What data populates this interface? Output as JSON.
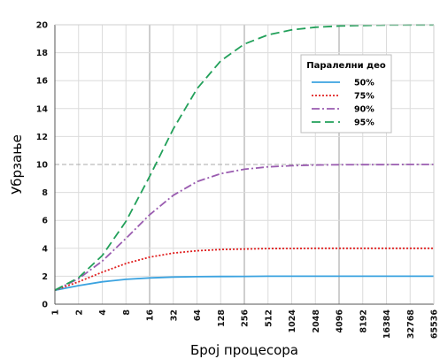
{
  "chart_data": {
    "type": "line",
    "title": "",
    "xlabel": "Број процесора",
    "ylabel": "Убрзање",
    "x_scale": "log2",
    "x": [
      1,
      2,
      4,
      8,
      16,
      32,
      64,
      128,
      256,
      512,
      1024,
      2048,
      4096,
      8192,
      16384,
      32768,
      65536
    ],
    "x_tick_labels": [
      "1",
      "2",
      "4",
      "8",
      "16",
      "32",
      "64",
      "128",
      "256",
      "512",
      "1024",
      "2048",
      "4096",
      "8192",
      "16384",
      "32768",
      "65536"
    ],
    "ylim": [
      0,
      20
    ],
    "y_ticks": [
      0,
      2,
      4,
      6,
      8,
      10,
      12,
      14,
      16,
      18,
      20
    ],
    "grid": true,
    "legend": {
      "title": "Паралелни део",
      "position": "top-right"
    },
    "series": [
      {
        "name": "50%",
        "color": "#3ba3e0",
        "dash": "solid",
        "values": [
          1.0,
          1.33,
          1.6,
          1.78,
          1.88,
          1.94,
          1.97,
          1.98,
          1.99,
          2.0,
          2.0,
          2.0,
          2.0,
          2.0,
          2.0,
          2.0,
          2.0
        ]
      },
      {
        "name": "75%",
        "color": "#e02020",
        "dash": "dotted",
        "values": [
          1.0,
          1.6,
          2.29,
          2.91,
          3.37,
          3.66,
          3.82,
          3.91,
          3.95,
          3.98,
          3.99,
          4.0,
          4.0,
          4.0,
          4.0,
          4.0,
          4.0
        ]
      },
      {
        "name": "90%",
        "color": "#9a5cb0",
        "dash": "dashdot",
        "values": [
          1.0,
          1.82,
          3.08,
          4.71,
          6.4,
          7.8,
          8.77,
          9.34,
          9.66,
          9.83,
          9.91,
          9.96,
          9.98,
          9.99,
          9.99,
          10.0,
          10.0
        ]
      },
      {
        "name": "95%",
        "color": "#22a05a",
        "dash": "dashed",
        "values": [
          1.0,
          1.9,
          3.48,
          5.93,
          9.14,
          12.55,
          15.42,
          17.41,
          18.62,
          19.28,
          19.63,
          19.82,
          19.91,
          19.95,
          19.98,
          19.99,
          19.99
        ]
      }
    ]
  }
}
